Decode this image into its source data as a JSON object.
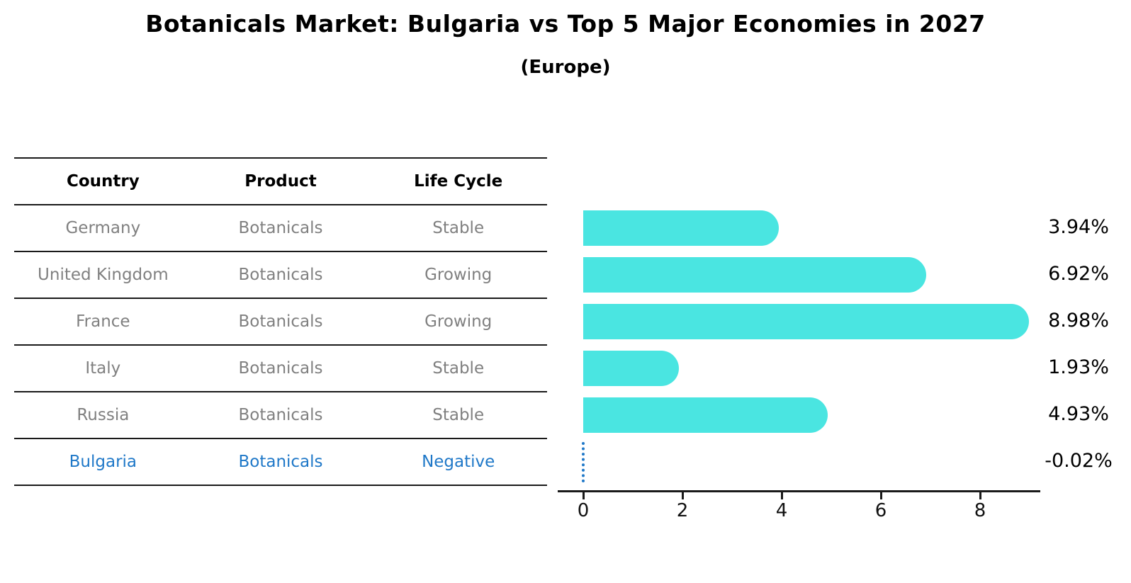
{
  "title": "Botanicals Market: Bulgaria vs Top 5 Major Economies in 2027",
  "subtitle": "(Europe)",
  "table": {
    "headers": [
      "Country",
      "Product",
      "Life Cycle"
    ],
    "rows": [
      {
        "country": "Germany",
        "product": "Botanicals",
        "life_cycle": "Stable",
        "highlight": false
      },
      {
        "country": "United Kingdom",
        "product": "Botanicals",
        "life_cycle": "Growing",
        "highlight": false
      },
      {
        "country": "France",
        "product": "Botanicals",
        "life_cycle": "Growing",
        "highlight": false
      },
      {
        "country": "Italy",
        "product": "Botanicals",
        "life_cycle": "Stable",
        "highlight": false
      },
      {
        "country": "Russia",
        "product": "Botanicals",
        "life_cycle": "Stable",
        "highlight": false
      },
      {
        "country": "Bulgaria",
        "product": "Botanicals",
        "life_cycle": "Negative",
        "highlight": true
      }
    ]
  },
  "chart_data": {
    "type": "bar",
    "orientation": "horizontal",
    "title": "Botanicals Market: Bulgaria vs Top 5 Major Economies in 2027",
    "subtitle": "(Europe)",
    "categories": [
      "Germany",
      "United Kingdom",
      "France",
      "Italy",
      "Russia",
      "Bulgaria"
    ],
    "values": [
      3.94,
      6.92,
      8.98,
      1.93,
      4.93,
      -0.02
    ],
    "value_labels": [
      "3.94%",
      "6.92%",
      "8.98%",
      "1.93%",
      "4.93%",
      "-0.02%"
    ],
    "x_ticks": [
      0,
      2,
      4,
      6,
      8
    ],
    "x_tick_labels": [
      "0",
      "2",
      "4",
      "6",
      "8"
    ],
    "xlim": [
      -0.5,
      9.4
    ],
    "grid": false,
    "legend": false,
    "bar_color": "#4ae5e1",
    "highlight_color": "#1f78c8",
    "axis_color": "#1a1a1a",
    "value_label_color": "#000000",
    "table_text_color": "#808080"
  }
}
